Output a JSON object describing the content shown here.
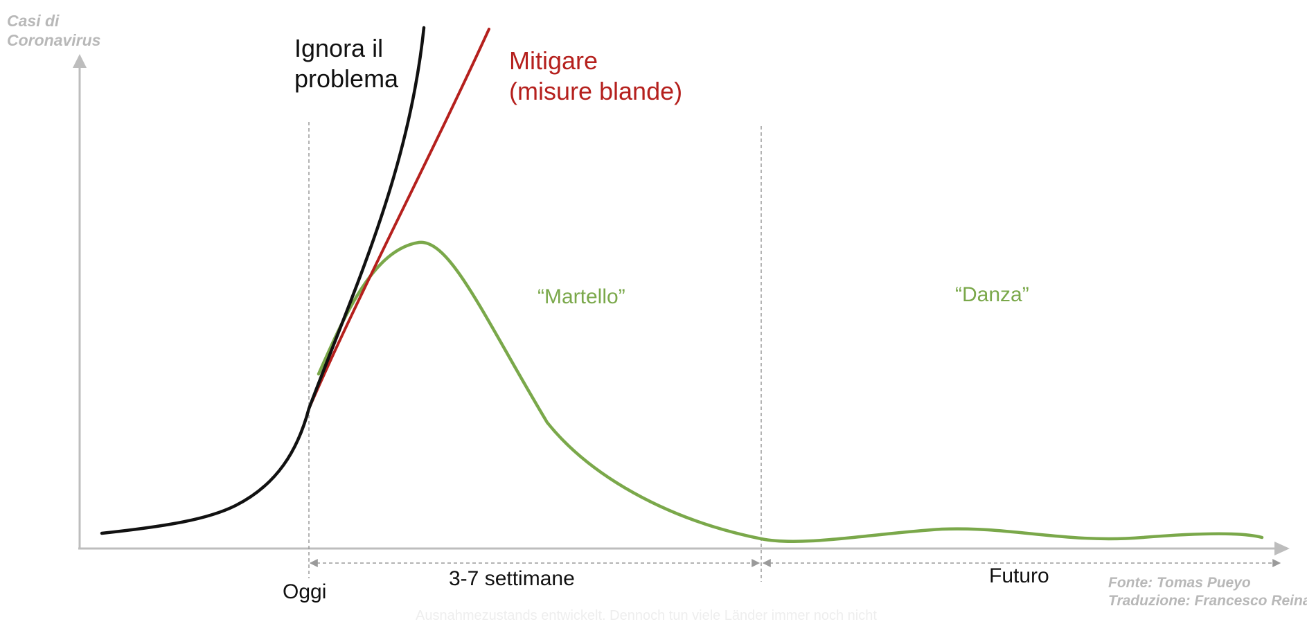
{
  "y_axis_title": [
    "Casi di",
    "Coronavirus"
  ],
  "curves": {
    "ignore": {
      "label": [
        "Ignora il",
        "problema"
      ],
      "color": "#111111"
    },
    "mitigate": {
      "label": [
        "Mitigare",
        "(misure blande)"
      ],
      "color": "#b5201d"
    },
    "suppress": {
      "color": "#7aa84a"
    }
  },
  "phases": {
    "hammer": "“Martello”",
    "dance": "“Danza”"
  },
  "timeline": {
    "today": "Oggi",
    "duration": "3-7 settimane",
    "future": "Futuro"
  },
  "source": [
    "Fonte: Tomas Pueyo",
    "Traduzione: Francesco Reina"
  ],
  "faded_caption": "Ausnahmezustands entwickelt. Dennoch tun viele Länder immer noch nicht",
  "colors": {
    "axis": "#bdbdbd",
    "guide": "#9a9a9a"
  }
}
